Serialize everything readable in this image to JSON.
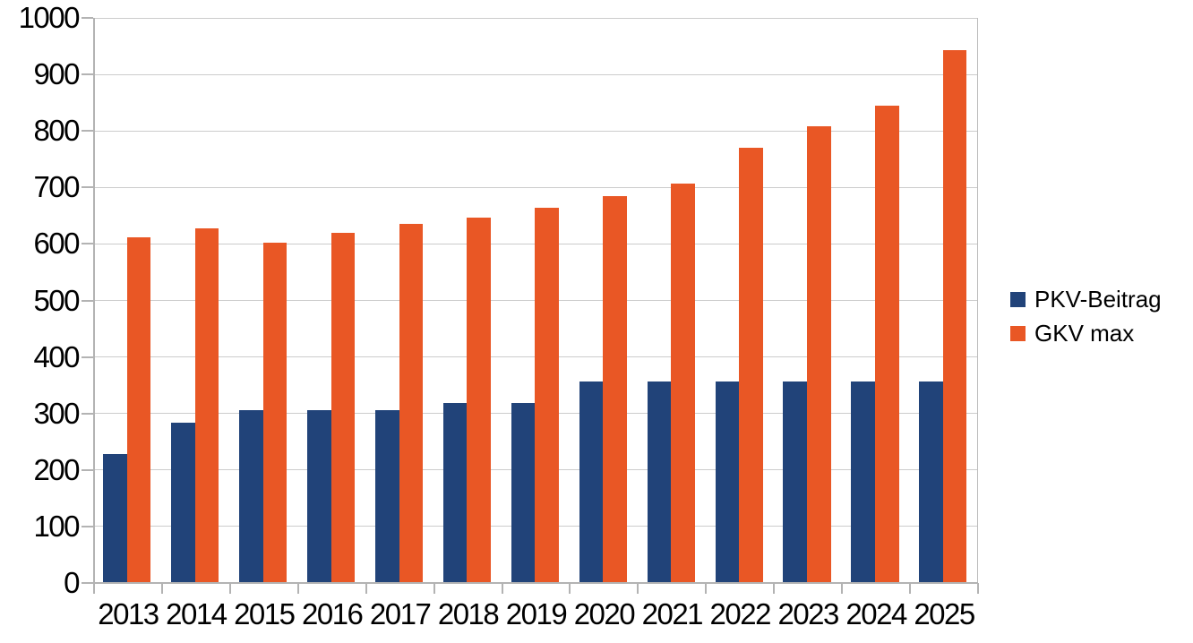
{
  "chart_data": {
    "type": "bar",
    "title": "",
    "xlabel": "",
    "ylabel": "",
    "categories": [
      "2013",
      "2014",
      "2015",
      "2016",
      "2017",
      "2018",
      "2019",
      "2020",
      "2021",
      "2022",
      "2023",
      "2024",
      "2025"
    ],
    "series": [
      {
        "name": "PKV-Beitrag",
        "color": "#214379",
        "values": [
          228,
          284,
          306,
          306,
          306,
          319,
          319,
          357,
          357,
          357,
          357,
          357,
          357
        ]
      },
      {
        "name": "GKV max",
        "color": "#E95725",
        "values": [
          611,
          628,
          603,
          619,
          636,
          647,
          664,
          685,
          707,
          770,
          808,
          844,
          943
        ]
      }
    ],
    "ylim": [
      0,
      1000
    ],
    "yticks": [
      0,
      100,
      200,
      300,
      400,
      500,
      600,
      700,
      800,
      900,
      1000
    ],
    "grid": "horizontal",
    "legend_position": "right"
  },
  "colors": {
    "background": "#ffffff",
    "gridline": "#cccccc",
    "axis": "#b3b3b3",
    "text": "#000000"
  }
}
